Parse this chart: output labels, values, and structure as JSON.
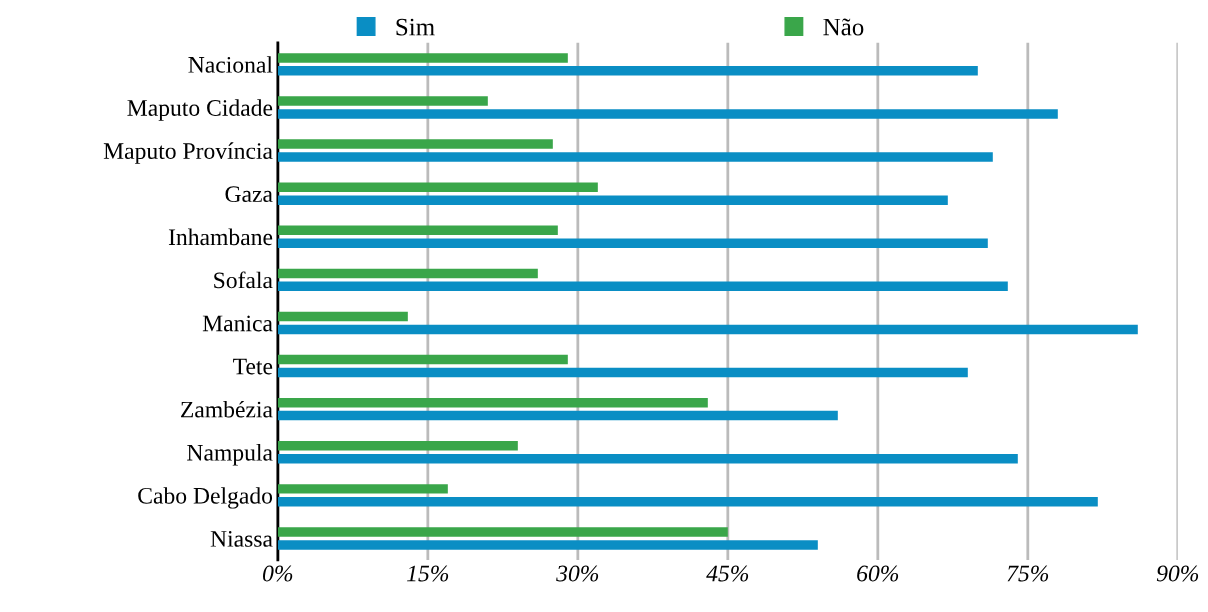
{
  "chart_data": {
    "type": "bar",
    "orientation": "horizontal",
    "categories": [
      "Nacional",
      "Maputo Cidade",
      "Maputo Província",
      "Gaza",
      "Inhambane",
      "Sofala",
      "Manica",
      "Tete",
      "Zambézia",
      "Nampula",
      "Cabo Delgado",
      "Niassa"
    ],
    "series": [
      {
        "name": "Sim",
        "color": "#0a8ec4",
        "values": [
          70,
          78,
          71.5,
          67,
          71,
          73,
          86,
          69,
          56,
          74,
          82,
          54
        ]
      },
      {
        "name": "Não",
        "color": "#3aa64a",
        "values": [
          29,
          21,
          27.5,
          32,
          28,
          26,
          13,
          29,
          43,
          24,
          17,
          45
        ]
      }
    ],
    "xlim": [
      0,
      90
    ],
    "xticks": [
      {
        "value": 0,
        "label": "0%"
      },
      {
        "value": 15,
        "label": "15%"
      },
      {
        "value": 30,
        "label": "30%"
      },
      {
        "value": 45,
        "label": "45%"
      },
      {
        "value": 60,
        "label": "60%"
      },
      {
        "value": 75,
        "label": "75%"
      },
      {
        "value": 90,
        "label": "90%"
      }
    ],
    "grid": "x",
    "legend": "top"
  }
}
